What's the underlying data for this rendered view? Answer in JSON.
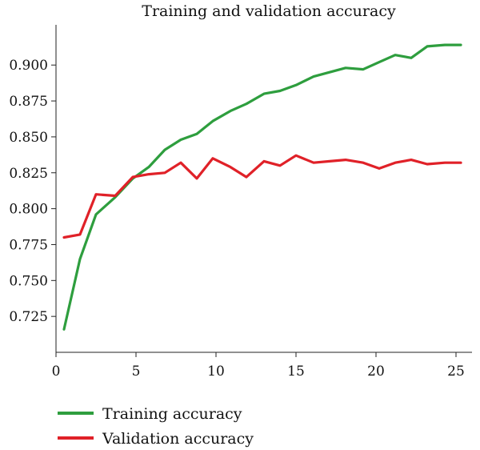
{
  "chart_data": {
    "type": "line",
    "title": "Training and validation accuracy",
    "xlabel": "",
    "ylabel": "",
    "xlim": [
      0,
      26
    ],
    "ylim": [
      0.7,
      0.928
    ],
    "xticks": [
      0,
      5,
      10,
      15,
      20,
      25
    ],
    "yticks": [
      0.725,
      0.75,
      0.775,
      0.8,
      0.825,
      0.85,
      0.875,
      0.9
    ],
    "ytick_labels": [
      "0.725",
      "0.750",
      "0.775",
      "0.800",
      "0.825",
      "0.850",
      "0.875",
      "0.900"
    ],
    "xtick_labels": [
      "0",
      "5",
      "10",
      "15",
      "20",
      "25"
    ],
    "grid": false,
    "legend_position": "bottom-left",
    "series": [
      {
        "name": "Training accuracy",
        "color": "#2e9e3e",
        "x": [
          0.5,
          1.5,
          2.5,
          3.7,
          4.8,
          5.8,
          6.8,
          7.8,
          8.8,
          9.8,
          10.9,
          11.9,
          13.0,
          14.0,
          15.0,
          16.1,
          17.1,
          18.1,
          19.2,
          20.2,
          21.2,
          22.2,
          23.2,
          24.3,
          25.3
        ],
        "y": [
          0.716,
          0.765,
          0.796,
          0.808,
          0.821,
          0.829,
          0.841,
          0.848,
          0.852,
          0.861,
          0.868,
          0.873,
          0.88,
          0.882,
          0.886,
          0.892,
          0.895,
          0.898,
          0.897,
          0.902,
          0.907,
          0.905,
          0.913,
          0.914,
          0.914
        ]
      },
      {
        "name": "Validation accuracy",
        "color": "#e02128",
        "x": [
          0.5,
          1.5,
          2.5,
          3.7,
          4.8,
          5.8,
          6.8,
          7.8,
          8.8,
          9.8,
          10.9,
          11.9,
          13.0,
          14.0,
          15.0,
          16.1,
          17.1,
          18.1,
          19.2,
          20.2,
          21.2,
          22.2,
          23.2,
          24.3,
          25.3
        ],
        "y": [
          0.78,
          0.782,
          0.81,
          0.809,
          0.822,
          0.824,
          0.825,
          0.832,
          0.821,
          0.835,
          0.829,
          0.822,
          0.833,
          0.83,
          0.837,
          0.832,
          0.833,
          0.834,
          0.832,
          0.828,
          0.832,
          0.834,
          0.831,
          0.832,
          0.832
        ]
      }
    ]
  }
}
